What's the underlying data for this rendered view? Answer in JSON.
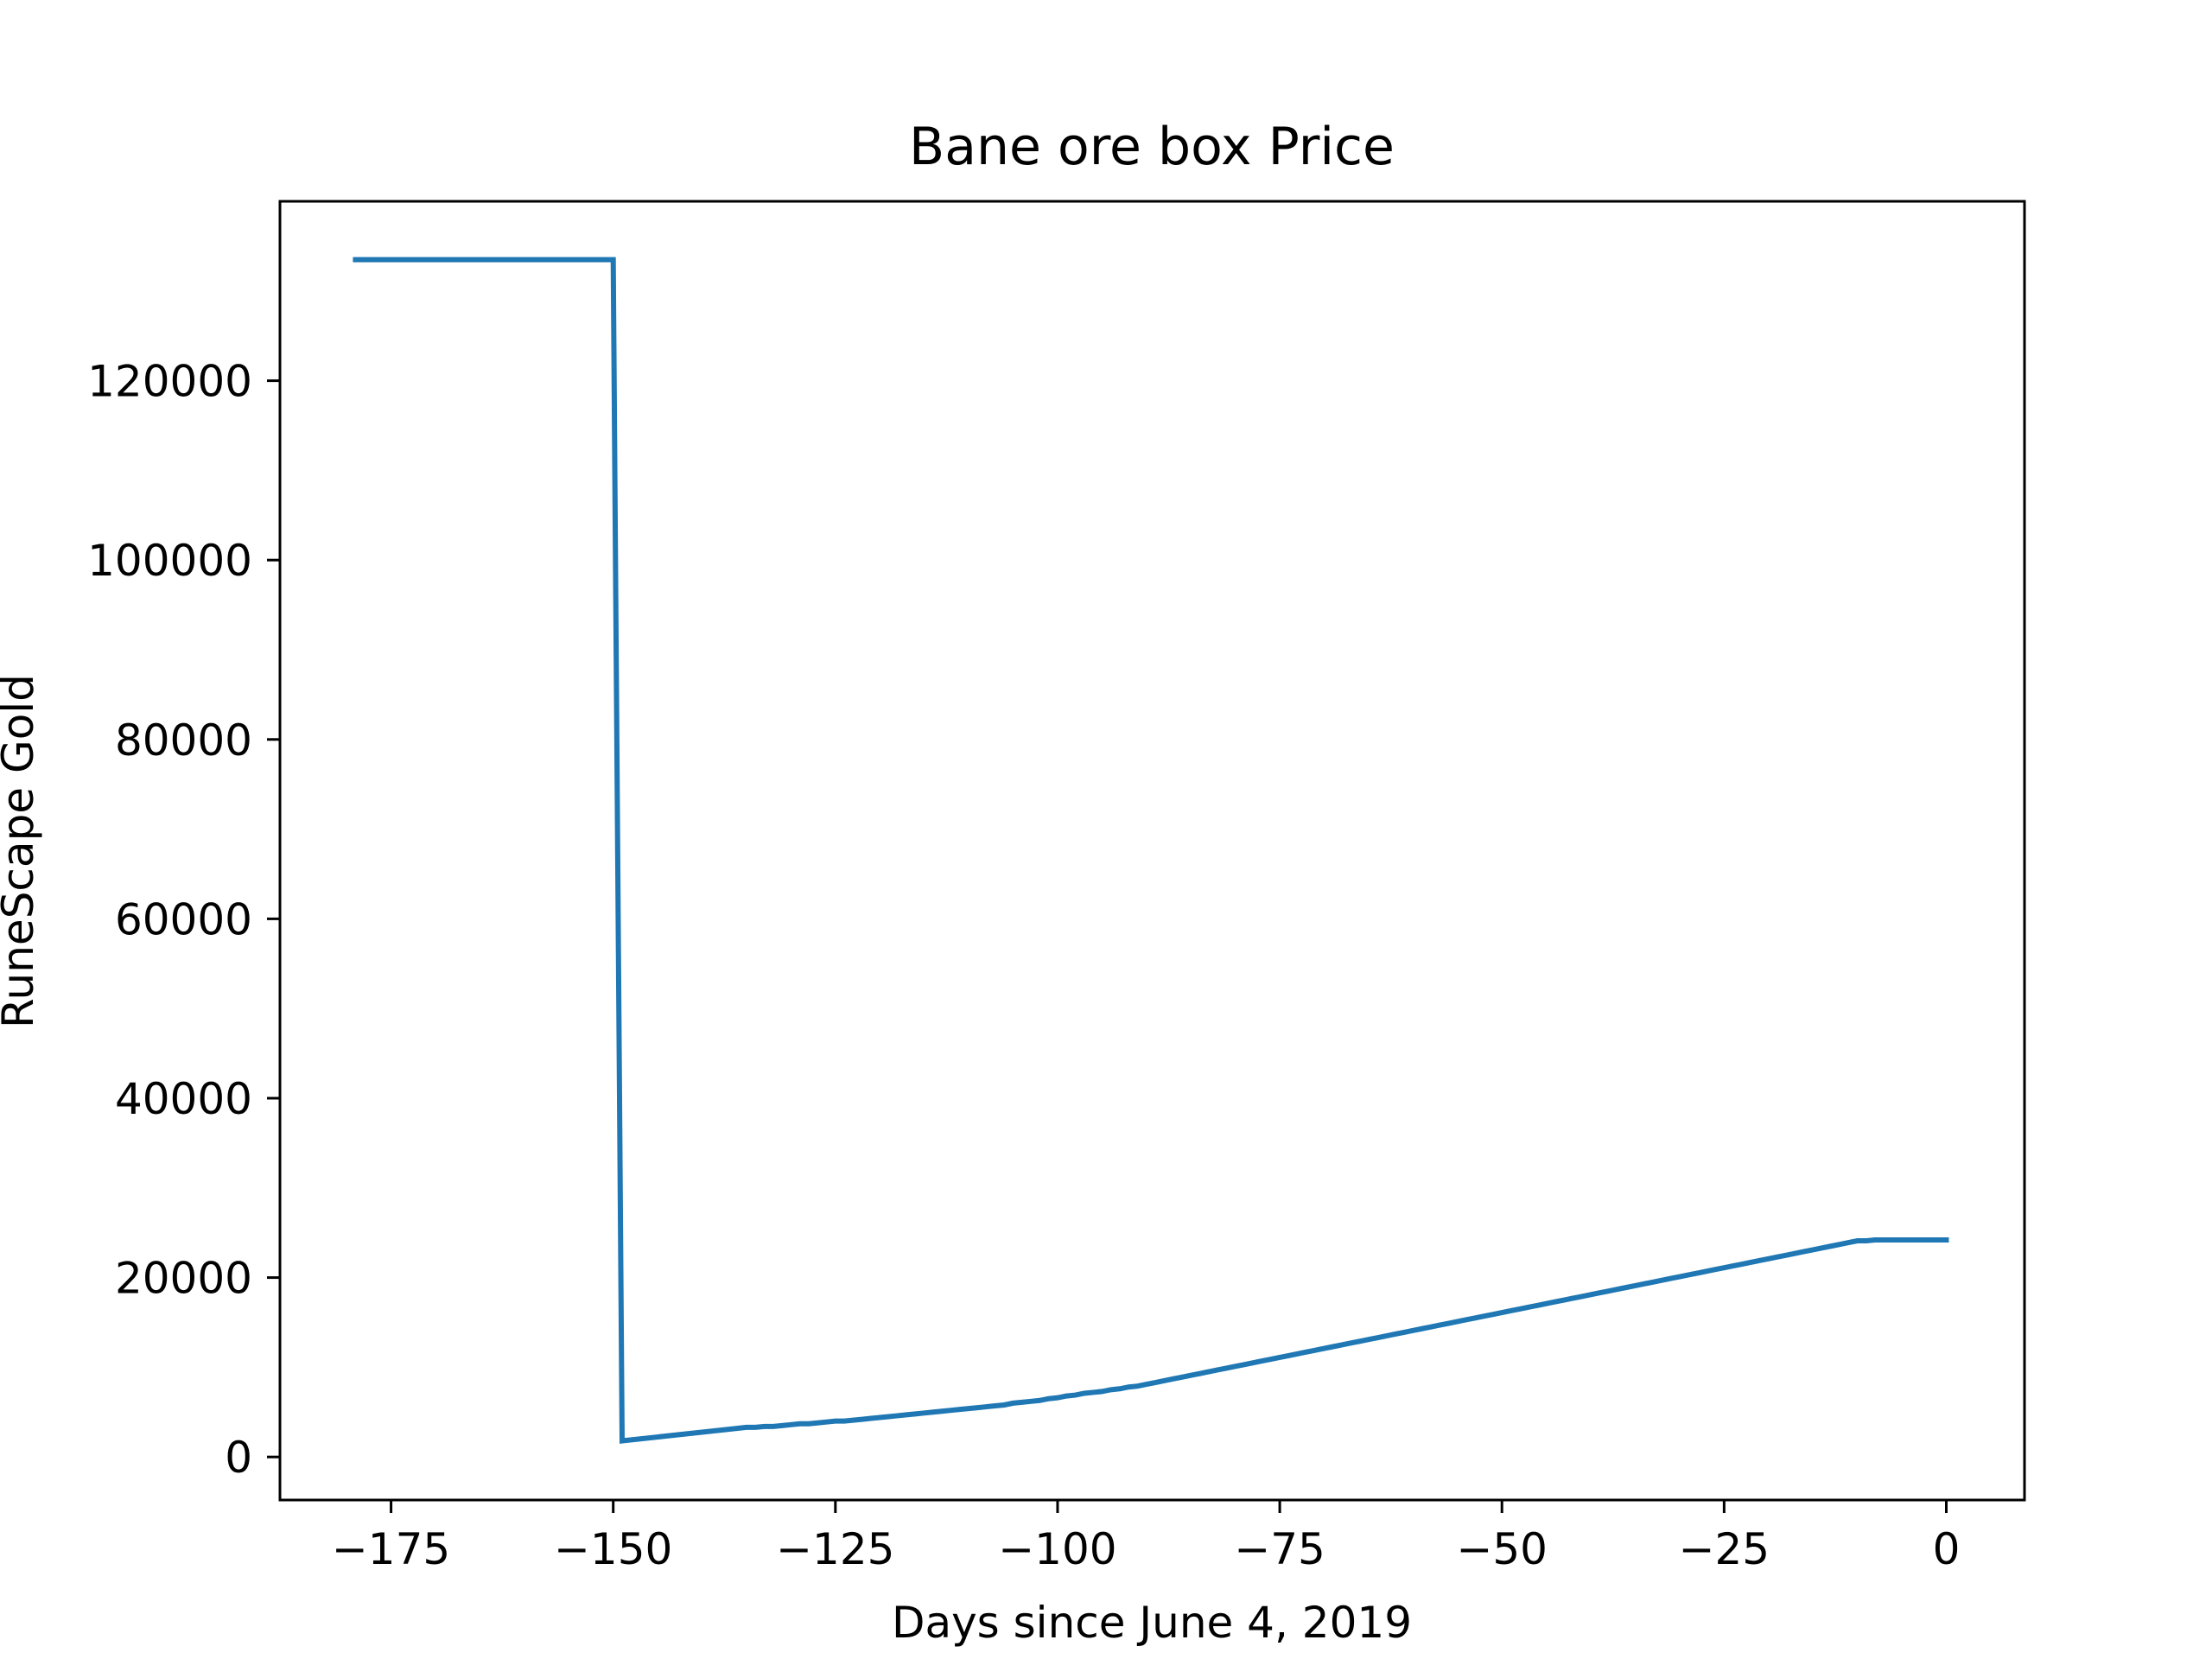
{
  "chart_data": {
    "type": "line",
    "title": "Bane ore box Price",
    "xlabel": "Days since June 4, 2019",
    "ylabel": "RuneScape Gold",
    "xlim": [
      -187.5,
      8.8
    ],
    "ylim": [
      -4800,
      140000
    ],
    "xticks": [
      -175,
      -150,
      -125,
      -100,
      -75,
      -50,
      -25,
      0
    ],
    "xtick_labels": [
      "−175",
      "−150",
      "−125",
      "−100",
      "−75",
      "−50",
      "−25",
      "0"
    ],
    "yticks": [
      0,
      20000,
      40000,
      60000,
      80000,
      100000,
      120000
    ],
    "ytick_labels": [
      "0",
      "20000",
      "40000",
      "60000",
      "80000",
      "100000",
      "120000"
    ],
    "grid": false,
    "line_color": "#1f77b4",
    "series": [
      {
        "x": [
          -179,
          -150,
          -149,
          -135,
          -134,
          -133,
          -132,
          -131,
          -130,
          -129,
          -128,
          -127,
          -126,
          -125,
          -124,
          -123,
          -122,
          -121,
          -120,
          -119,
          -118,
          -117,
          -116,
          -115,
          -114,
          -113,
          -112,
          -111,
          -110,
          -109,
          -108,
          -107,
          -106,
          -105,
          -104,
          -103,
          -102,
          -101,
          -100,
          -99,
          -98,
          -97,
          -96,
          -95,
          -94,
          -93,
          -92,
          -91,
          -90,
          -89,
          -88,
          -87,
          -86,
          -85,
          -84,
          -83,
          -82,
          -81,
          -80,
          -79,
          -78,
          -77,
          -76,
          -75,
          -74,
          -73,
          -72,
          -71,
          -70,
          -69,
          -68,
          -67,
          -66,
          -65,
          -64,
          -63,
          -62,
          -61,
          -60,
          -59,
          -58,
          -57,
          -56,
          -55,
          -54,
          -53,
          -52,
          -51,
          -50,
          -49,
          -48,
          -47,
          -46,
          -45,
          -44,
          -43,
          -42,
          -41,
          -40,
          -39,
          -38,
          -37,
          -36,
          -35,
          -34,
          -33,
          -32,
          -31,
          -30,
          -29,
          -28,
          -27,
          -26,
          -25,
          -24,
          -23,
          -22,
          -21,
          -20,
          -19,
          -18,
          -17,
          -16,
          -15,
          -14,
          -13,
          -12,
          -11,
          -10,
          -9,
          -8,
          -7,
          -6,
          -5,
          -4,
          -3,
          -2,
          -1,
          0
        ],
        "y": [
          133500,
          133500,
          1800,
          3300,
          3300,
          3400,
          3400,
          3500,
          3600,
          3700,
          3700,
          3800,
          3900,
          4000,
          4000,
          4100,
          4200,
          4300,
          4400,
          4500,
          4600,
          4700,
          4800,
          4900,
          5000,
          5100,
          5200,
          5300,
          5400,
          5500,
          5600,
          5700,
          5800,
          6000,
          6100,
          6200,
          6300,
          6500,
          6600,
          6800,
          6900,
          7100,
          7200,
          7300,
          7500,
          7600,
          7800,
          7900,
          8100,
          8300,
          8500,
          8700,
          8900,
          9100,
          9300,
          9500,
          9700,
          9900,
          10100,
          10300,
          10500,
          10700,
          10900,
          11100,
          11300,
          11500,
          11700,
          11900,
          12100,
          12300,
          12500,
          12700,
          12900,
          13100,
          13300,
          13500,
          13700,
          13900,
          14100,
          14300,
          14500,
          14700,
          14900,
          15100,
          15300,
          15500,
          15700,
          15900,
          16100,
          16300,
          16500,
          16700,
          16900,
          17100,
          17300,
          17500,
          17700,
          17900,
          18100,
          18300,
          18500,
          18700,
          18900,
          19100,
          19300,
          19500,
          19700,
          19900,
          20100,
          20300,
          20500,
          20700,
          20900,
          21100,
          21300,
          21500,
          21700,
          21900,
          22100,
          22300,
          22500,
          22700,
          22900,
          23100,
          23300,
          23500,
          23700,
          23900,
          24100,
          24100,
          24200,
          24200,
          24200,
          24200,
          24200,
          24200,
          24200,
          24200,
          24200
        ]
      }
    ]
  }
}
